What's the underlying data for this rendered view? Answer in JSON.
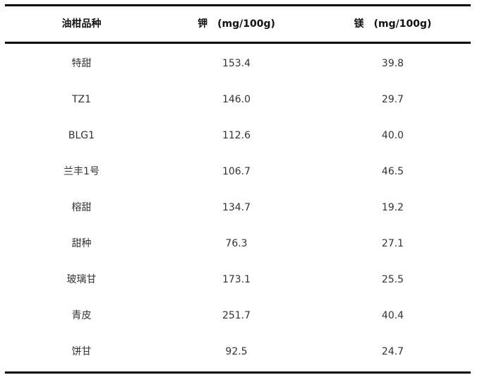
{
  "table": {
    "headers": [
      "油柑品种",
      "钾　(mg/100g)",
      "镁　(mg/100g)"
    ],
    "rows": [
      [
        "特甜",
        "153.4",
        "39.8"
      ],
      [
        "TZ1",
        "146.0",
        "29.7"
      ],
      [
        "BLG1",
        "112.6",
        "40.0"
      ],
      [
        "兰丰1号",
        "106.7",
        "46.5"
      ],
      [
        "榕甜",
        "134.7",
        "19.2"
      ],
      [
        "甜种",
        "76.3",
        "27.1"
      ],
      [
        "玻璃甘",
        "173.1",
        "25.5"
      ],
      [
        "青皮",
        "251.7",
        "40.4"
      ],
      [
        "饼甘",
        "92.5",
        "24.7"
      ]
    ]
  }
}
